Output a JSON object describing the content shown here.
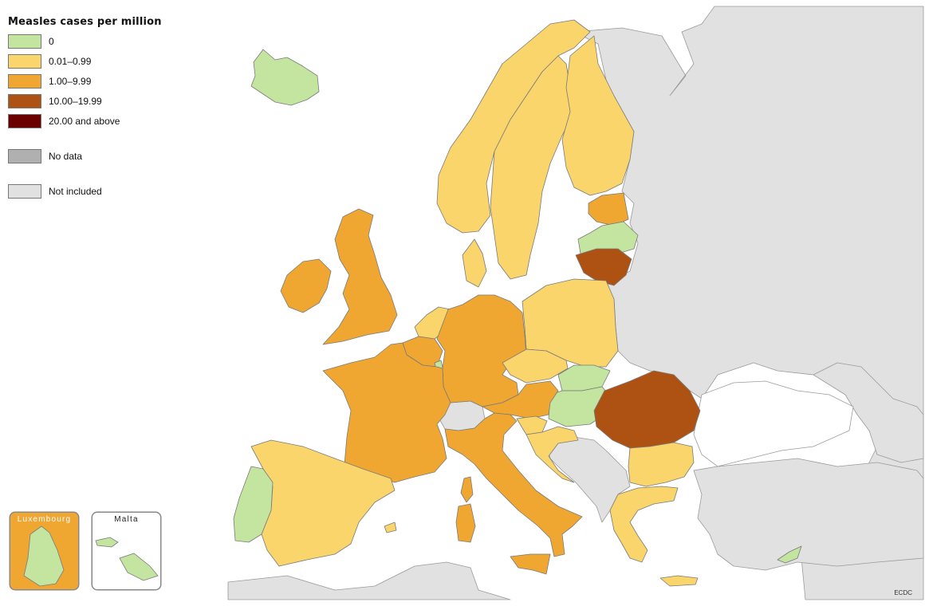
{
  "colors": {
    "zero": "#c3e5a0",
    "low": "#f9d56c",
    "mid": "#f0a732",
    "high": "#ad5213",
    "veryhigh": "#6a0000",
    "nodata": "#b0b0b0",
    "notincluded": "#e1e1e1",
    "sea": "#ffffff",
    "border": "#7a7a7a"
  },
  "legend": {
    "title": "Measles cases per million",
    "items": [
      {
        "label": "0",
        "color": "#c3e5a0"
      },
      {
        "label": "0.01–0.99",
        "color": "#f9d56c"
      },
      {
        "label": "1.00–9.99",
        "color": "#f0a732"
      },
      {
        "label": "10.00–19.99",
        "color": "#ad5213"
      },
      {
        "label": "20.00 and above",
        "color": "#6a0000"
      },
      {
        "label": "No data",
        "color": "#b0b0b0"
      },
      {
        "label": "Not included",
        "color": "#e1e1e1"
      }
    ]
  },
  "insets": {
    "luxembourg": {
      "title": "Luxembourg",
      "class": "zero"
    },
    "malta": {
      "title": "Malta",
      "class": "zero"
    }
  },
  "countries": [
    {
      "name": "Iceland",
      "class": "zero"
    },
    {
      "name": "Norway",
      "class": "low"
    },
    {
      "name": "Sweden",
      "class": "low"
    },
    {
      "name": "Finland",
      "class": "low"
    },
    {
      "name": "Estonia",
      "class": "mid"
    },
    {
      "name": "Latvia",
      "class": "zero"
    },
    {
      "name": "Lithuania",
      "class": "high"
    },
    {
      "name": "Denmark",
      "class": "low"
    },
    {
      "name": "Ireland",
      "class": "mid"
    },
    {
      "name": "United Kingdom",
      "class": "mid"
    },
    {
      "name": "Netherlands",
      "class": "low"
    },
    {
      "name": "Belgium",
      "class": "mid"
    },
    {
      "name": "Luxembourg",
      "class": "zero"
    },
    {
      "name": "Germany",
      "class": "mid"
    },
    {
      "name": "Poland",
      "class": "low"
    },
    {
      "name": "Czechia",
      "class": "low"
    },
    {
      "name": "Slovakia",
      "class": "zero"
    },
    {
      "name": "Hungary",
      "class": "zero"
    },
    {
      "name": "Austria",
      "class": "mid"
    },
    {
      "name": "Slovenia",
      "class": "low"
    },
    {
      "name": "Croatia",
      "class": "low"
    },
    {
      "name": "Romania",
      "class": "high"
    },
    {
      "name": "Bulgaria",
      "class": "low"
    },
    {
      "name": "Greece",
      "class": "low"
    },
    {
      "name": "Cyprus",
      "class": "zero"
    },
    {
      "name": "France",
      "class": "mid"
    },
    {
      "name": "Italy",
      "class": "mid"
    },
    {
      "name": "Spain",
      "class": "low"
    },
    {
      "name": "Portugal",
      "class": "zero"
    },
    {
      "name": "Malta",
      "class": "zero"
    },
    {
      "name": "Switzerland",
      "class": "notincluded"
    }
  ],
  "credit": "ECDC"
}
